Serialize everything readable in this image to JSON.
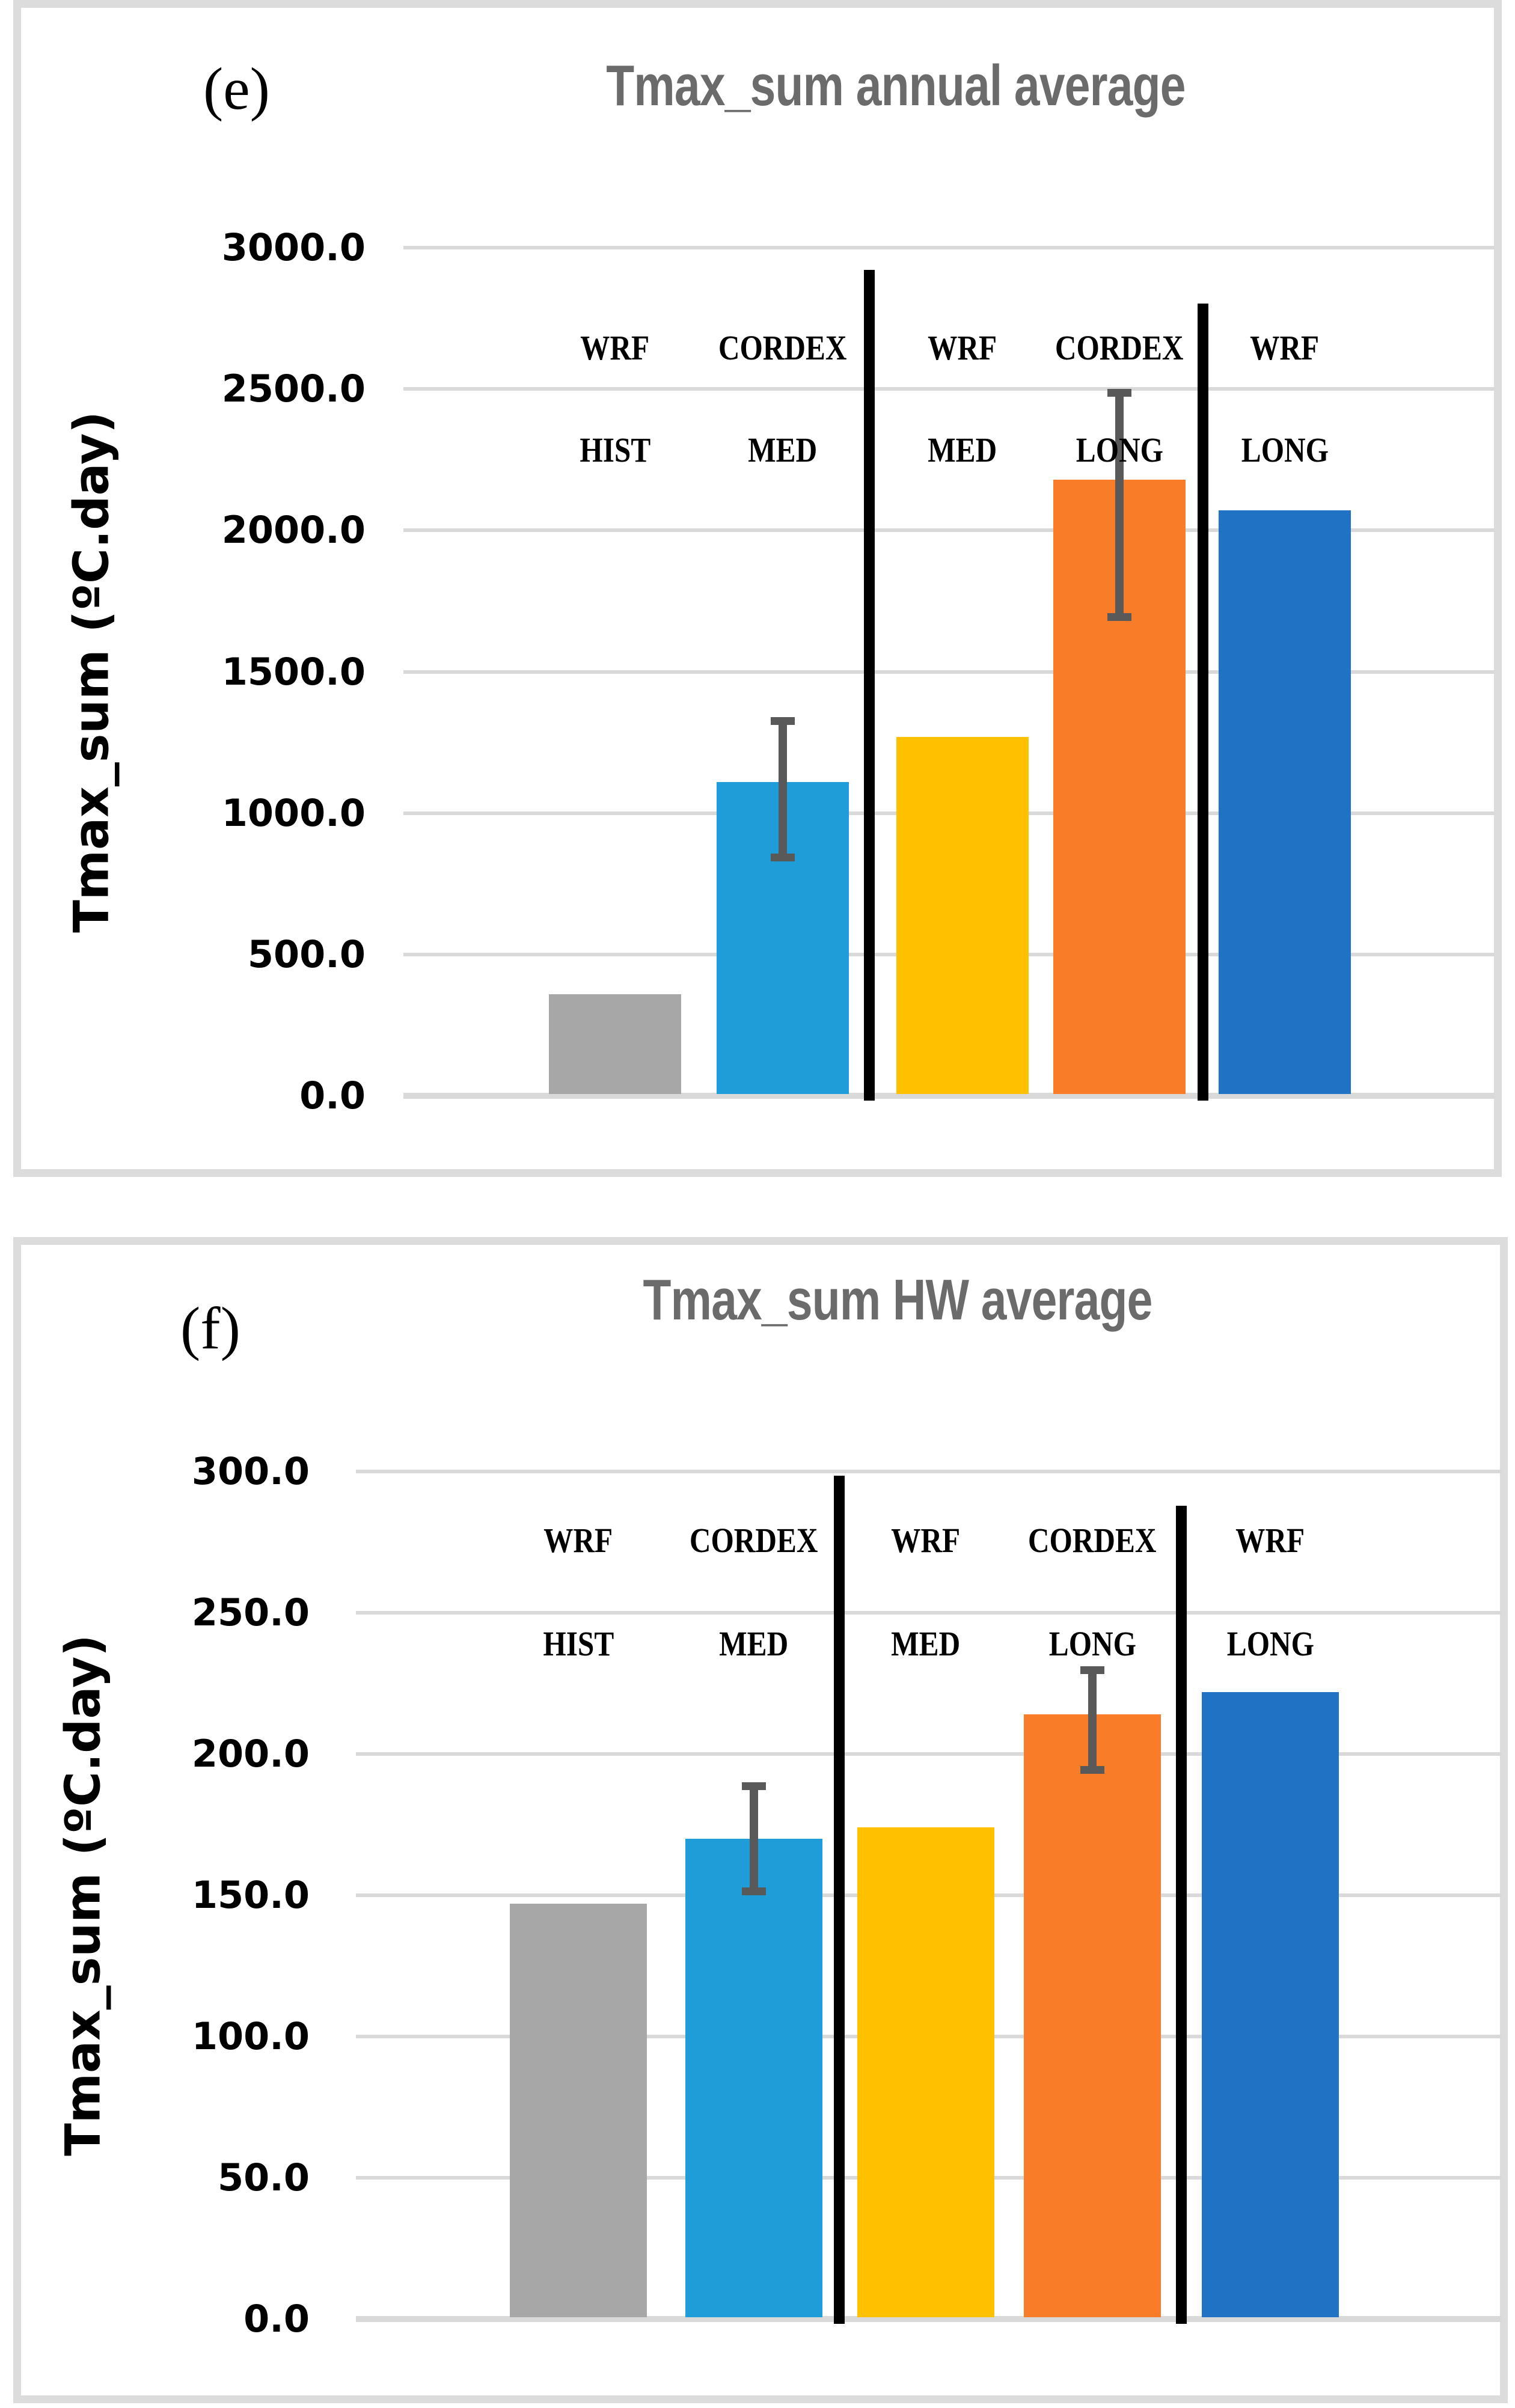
{
  "page": {
    "background": "#ffffff",
    "border_color": "#dcdcdc"
  },
  "panels": [
    {
      "tag": "(e)",
      "title": "Tmax_sum annual average"
    },
    {
      "tag": "(f)",
      "title": "Tmax_sum HW average"
    }
  ],
  "chart_data": [
    {
      "type": "bar",
      "title": "Tmax_sum annual average",
      "title_color": "#6b6b6b",
      "xlabel": "",
      "ylabel": "Tmax_sum (ºC.day)",
      "ylim": [
        0,
        3000
      ],
      "ytick_step": 500,
      "ytick_labels": [
        "0.0",
        "500.0",
        "1000.0",
        "1500.0",
        "2000.0",
        "2500.0",
        "3000.0"
      ],
      "grid": true,
      "gridline_color": "#d9d9d9",
      "categories": [
        [
          "WRF",
          "HIST"
        ],
        [
          "CORDEX",
          "MED"
        ],
        [
          "WRF",
          "MED"
        ],
        [
          "CORDEX",
          "LONG"
        ],
        [
          "WRF",
          "LONG"
        ]
      ],
      "values": [
        360,
        1110,
        1270,
        2180,
        2070
      ],
      "errors": [
        null,
        {
          "low": 830,
          "high": 1340
        },
        null,
        {
          "low": 1680,
          "high": 2500
        },
        null
      ],
      "bar_colors": [
        "#a7a7a7",
        "#1f9dd9",
        "#ffc000",
        "#f97d28",
        "#1f72c4"
      ],
      "error_color": "#595959",
      "separator_color": "#000000",
      "separators_after_category": [
        1,
        3
      ],
      "legend": null
    },
    {
      "type": "bar",
      "title": "Tmax_sum HW average",
      "title_color": "#6b6b6b",
      "xlabel": "",
      "ylabel": "Tmax_sum (ºC.day)",
      "ylim": [
        0,
        300
      ],
      "ytick_step": 50,
      "ytick_labels": [
        "0.0",
        "50.0",
        "100.0",
        "150.0",
        "200.0",
        "250.0",
        "300.0"
      ],
      "grid": true,
      "gridline_color": "#d9d9d9",
      "categories": [
        [
          "WRF",
          "HIST"
        ],
        [
          "CORDEX",
          "MED"
        ],
        [
          "WRF",
          "MED"
        ],
        [
          "CORDEX",
          "LONG"
        ],
        [
          "WRF",
          "LONG"
        ]
      ],
      "values": [
        147,
        170,
        174,
        214,
        222
      ],
      "errors": [
        null,
        {
          "low": 150,
          "high": 190
        },
        null,
        {
          "low": 193,
          "high": 231
        },
        null
      ],
      "bar_colors": [
        "#a7a7a7",
        "#1f9dd9",
        "#ffc000",
        "#f97d28",
        "#1f72c4"
      ],
      "error_color": "#595959",
      "separator_color": "#000000",
      "separators_after_category": [
        1,
        3
      ],
      "legend": null
    }
  ]
}
